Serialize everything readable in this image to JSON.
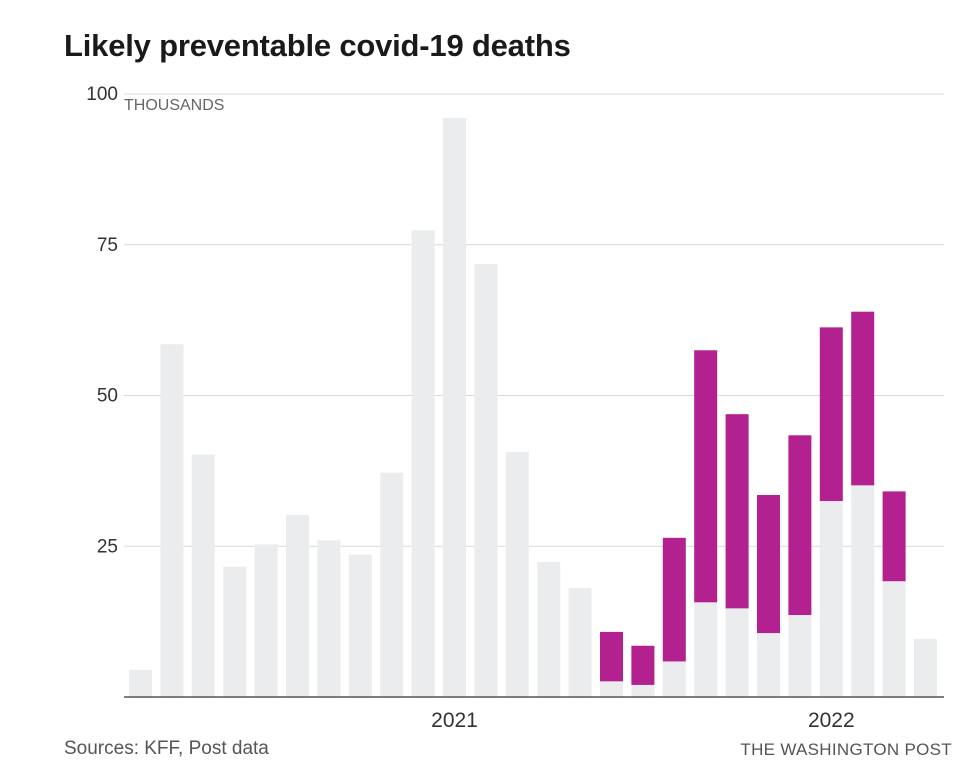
{
  "title": "Likely preventable covid-19 deaths",
  "source": "Sources: KFF, Post data",
  "credit": "THE WASHINGTON POST",
  "colors": {
    "base": "#ebeced",
    "preventable": "#b3208f",
    "grid": "#d9d9d9",
    "axis": "#555555",
    "text": "#333333"
  },
  "chart_data": {
    "type": "bar",
    "stacked": true,
    "title": "Likely preventable covid-19 deaths",
    "unit_label": "THOUSANDS",
    "ylim": [
      0,
      100
    ],
    "y_ticks": [
      100,
      75,
      50,
      25
    ],
    "x_tick_labels": [
      {
        "label": "2021",
        "bar_index": 10
      },
      {
        "label": "2022",
        "bar_index": 22
      }
    ],
    "bar_count": 26,
    "series": [
      {
        "values": [
          4.5,
          58.5,
          40.2,
          21.6,
          25.3,
          30.2,
          26.0,
          23.6,
          37.2,
          77.4,
          96.0,
          71.8,
          40.6,
          22.4,
          18.1,
          2.6,
          2.0,
          5.9,
          15.7,
          14.7,
          10.6,
          13.6,
          32.5,
          35.1,
          19.2,
          9.6
        ]
      },
      {
        "values": [
          0,
          0,
          0,
          0,
          0,
          0,
          0,
          0,
          0,
          0,
          0,
          0,
          0,
          0,
          0,
          8.2,
          6.5,
          20.5,
          41.8,
          32.2,
          22.9,
          29.8,
          28.8,
          28.8,
          14.9,
          0
        ]
      }
    ]
  }
}
